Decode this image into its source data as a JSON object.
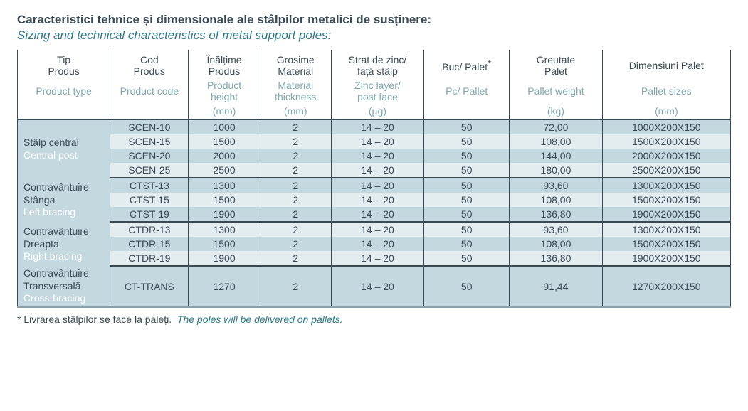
{
  "title_ro": "Caracteristici tehnice și dimensionale ale stâlpilor metalici de susținere:",
  "title_en": "Sizing and technical characteristics of metal support poles:",
  "columns": {
    "type": {
      "ro": "Tip\nProdus",
      "en": "Product type",
      "unit": ""
    },
    "code": {
      "ro": "Cod\nProdus",
      "en": "Product code",
      "unit": ""
    },
    "height": {
      "ro": "Înălțime\nProdus",
      "en": "Product\nheight",
      "unit": "(mm)"
    },
    "thick": {
      "ro": "Grosime\nMaterial",
      "en": "Material\nthickness",
      "unit": "(mm)"
    },
    "zinc": {
      "ro": "Strat de zinc/\nfață stâlp",
      "en": "Zinc layer/\npost face",
      "unit": "(µg)"
    },
    "pc": {
      "ro": "Buc/ Palet*",
      "en": "Pc/ Pallet",
      "unit": ""
    },
    "weight": {
      "ro": "Greutate\nPalet",
      "en": "Pallet weight",
      "unit": "(kg)"
    },
    "dim": {
      "ro": "Dimensiuni Palet",
      "en": "Pallet sizes",
      "unit": "(mm)"
    }
  },
  "groups": [
    {
      "label_ro": "Stâlp central",
      "label_en": "Central post",
      "rows": [
        {
          "code": "SCEN-10",
          "height": "1000",
          "thick": "2",
          "zinc": "14 – 20",
          "pc": "50",
          "weight": "72,00",
          "dim": "1000X200X150"
        },
        {
          "code": "SCEN-15",
          "height": "1500",
          "thick": "2",
          "zinc": "14 – 20",
          "pc": "50",
          "weight": "108,00",
          "dim": "1500X200X150"
        },
        {
          "code": "SCEN-20",
          "height": "2000",
          "thick": "2",
          "zinc": "14 – 20",
          "pc": "50",
          "weight": "144,00",
          "dim": "2000X200X150"
        },
        {
          "code": "SCEN-25",
          "height": "2500",
          "thick": "2",
          "zinc": "14 – 20",
          "pc": "50",
          "weight": "180,00",
          "dim": "2500X200X150"
        }
      ]
    },
    {
      "label_ro": "Contravântuire\nStânga",
      "label_en": "Left bracing",
      "rows": [
        {
          "code": "CTST-13",
          "height": "1300",
          "thick": "2",
          "zinc": "14 – 20",
          "pc": "50",
          "weight": "93,60",
          "dim": "1300X200X150"
        },
        {
          "code": "CTST-15",
          "height": "1500",
          "thick": "2",
          "zinc": "14 – 20",
          "pc": "50",
          "weight": "108,00",
          "dim": "1500X200X150"
        },
        {
          "code": "CTST-19",
          "height": "1900",
          "thick": "2",
          "zinc": "14 – 20",
          "pc": "50",
          "weight": "136,80",
          "dim": "1900X200X150"
        }
      ]
    },
    {
      "label_ro": "Contravântuire\nDreapta",
      "label_en": "Right bracing",
      "rows": [
        {
          "code": "CTDR-13",
          "height": "1300",
          "thick": "2",
          "zinc": "14 – 20",
          "pc": "50",
          "weight": "93,60",
          "dim": "1300X200X150"
        },
        {
          "code": "CTDR-15",
          "height": "1500",
          "thick": "2",
          "zinc": "14 – 20",
          "pc": "50",
          "weight": "108,00",
          "dim": "1500X200X150"
        },
        {
          "code": "CTDR-19",
          "height": "1900",
          "thick": "2",
          "zinc": "14 – 20",
          "pc": "50",
          "weight": "136,80",
          "dim": "1900X200X150"
        }
      ]
    },
    {
      "label_ro": "Contravântuire\nTransversală",
      "label_en": "Cross-bracing",
      "rows": [
        {
          "code": "CT-TRANS",
          "height": "1270",
          "thick": "2",
          "zinc": "14 – 20",
          "pc": "50",
          "weight": "91,44",
          "dim": "1270X200X150"
        }
      ]
    }
  ],
  "footnote": {
    "marker": "*",
    "ro": "Livrarea stâlpilor se face la paleți.",
    "en": "The poles will be delivered on pallets."
  },
  "style": {
    "row_bg_a": "#c4d8df",
    "row_bg_b": "#e3edf0"
  }
}
